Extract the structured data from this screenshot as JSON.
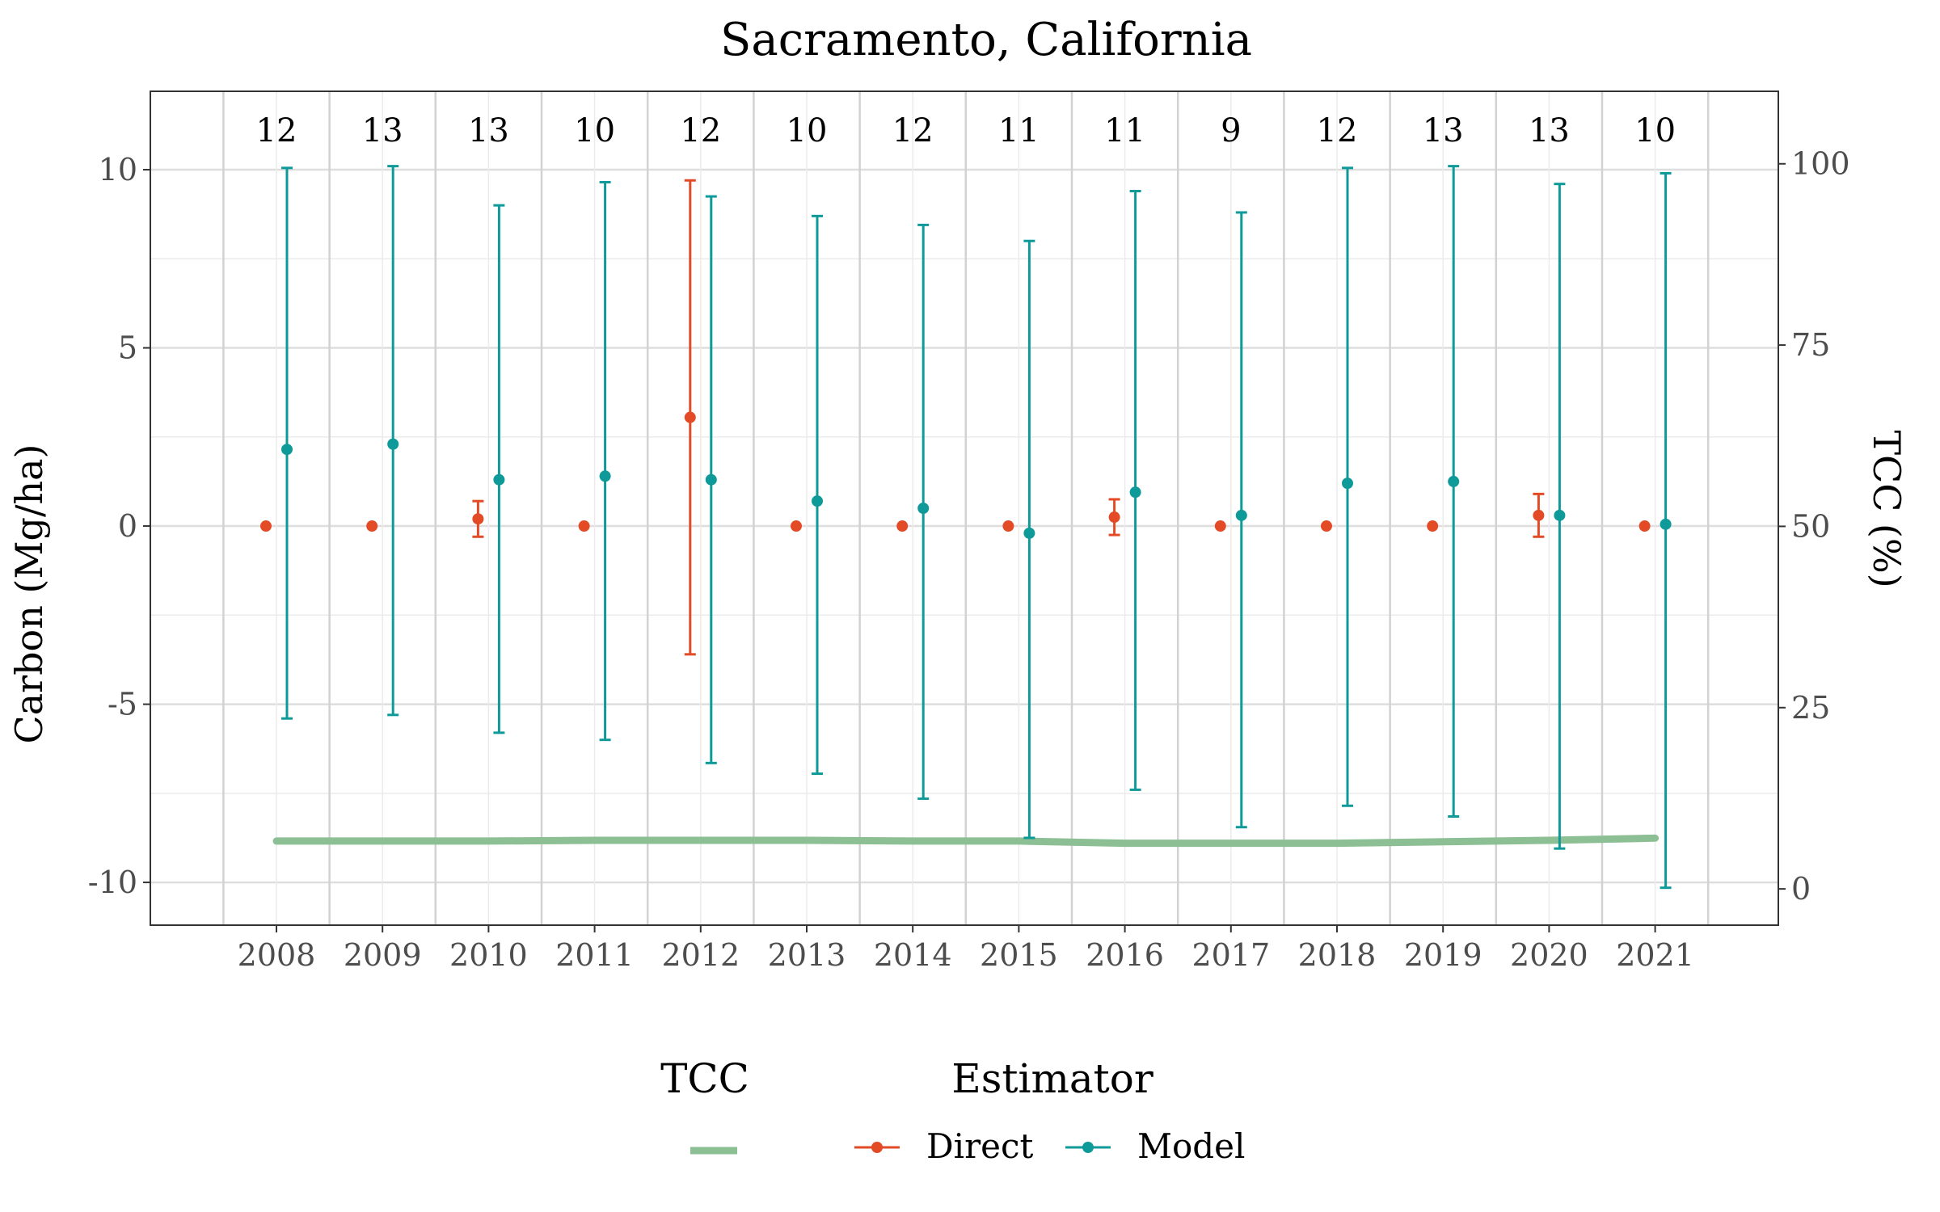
{
  "chart_data": {
    "type": "scatter",
    "title": "Sacramento, California",
    "ylabel": "Carbon (Mg/ha)",
    "y2label": "TCC (%)",
    "xlabel": "",
    "categories": [
      "2008",
      "2009",
      "2010",
      "2011",
      "2012",
      "2013",
      "2014",
      "2015",
      "2016",
      "2017",
      "2018",
      "2019",
      "2020",
      "2021"
    ],
    "ylim": [
      -11.2,
      12.2
    ],
    "yticks": [
      -10,
      -5,
      0,
      5,
      10
    ],
    "ytick_labels": [
      "-10",
      "-5",
      "0",
      "5",
      "10"
    ],
    "y2lim": [
      -5,
      110
    ],
    "y2ticks": [
      0,
      25,
      50,
      75,
      100
    ],
    "y2tick_labels": [
      "0",
      "25",
      "50",
      "75",
      "100"
    ],
    "grid": true,
    "counts": [
      "12",
      "13",
      "13",
      "10",
      "12",
      "10",
      "12",
      "11",
      "11",
      "9",
      "12",
      "13",
      "13",
      "10"
    ],
    "series": [
      {
        "name": "Direct",
        "color": "#e34a26",
        "values": [
          0,
          0,
          0.2,
          0,
          3.05,
          0,
          0,
          0,
          0.25,
          0,
          0,
          0,
          0.3,
          0
        ],
        "lower": [
          0,
          0,
          -0.3,
          0,
          -3.6,
          0,
          0,
          0,
          -0.25,
          0,
          0,
          0,
          -0.3,
          0
        ],
        "upper": [
          0,
          0,
          0.7,
          0,
          9.7,
          0,
          0,
          0,
          0.75,
          0,
          0,
          0,
          0.9,
          0
        ]
      },
      {
        "name": "Model",
        "color": "#0f9a9a",
        "values": [
          2.15,
          2.3,
          1.3,
          1.4,
          1.3,
          0.7,
          0.5,
          -0.2,
          0.95,
          0.3,
          1.2,
          1.25,
          0.3,
          0.05
        ],
        "lower": [
          -5.4,
          -5.3,
          -5.8,
          -6.0,
          -6.65,
          -6.95,
          -7.65,
          -8.75,
          -7.4,
          -8.45,
          -7.85,
          -8.15,
          -9.05,
          -10.15
        ],
        "upper": [
          10.05,
          10.1,
          9.0,
          9.65,
          9.25,
          8.7,
          8.45,
          8.0,
          9.4,
          8.8,
          10.05,
          10.1,
          9.6,
          9.9
        ]
      }
    ],
    "tcc": {
      "name": "TCC",
      "color": "#8dbf94",
      "values": [
        6.6,
        6.6,
        6.6,
        6.7,
        6.7,
        6.7,
        6.6,
        6.6,
        6.3,
        6.3,
        6.3,
        6.5,
        6.7,
        7.0
      ]
    },
    "legend": {
      "position": "bottom",
      "tcc_title": "TCC",
      "estimator_title": "Estimator",
      "estimator_labels": [
        "Direct",
        "Model"
      ]
    }
  }
}
